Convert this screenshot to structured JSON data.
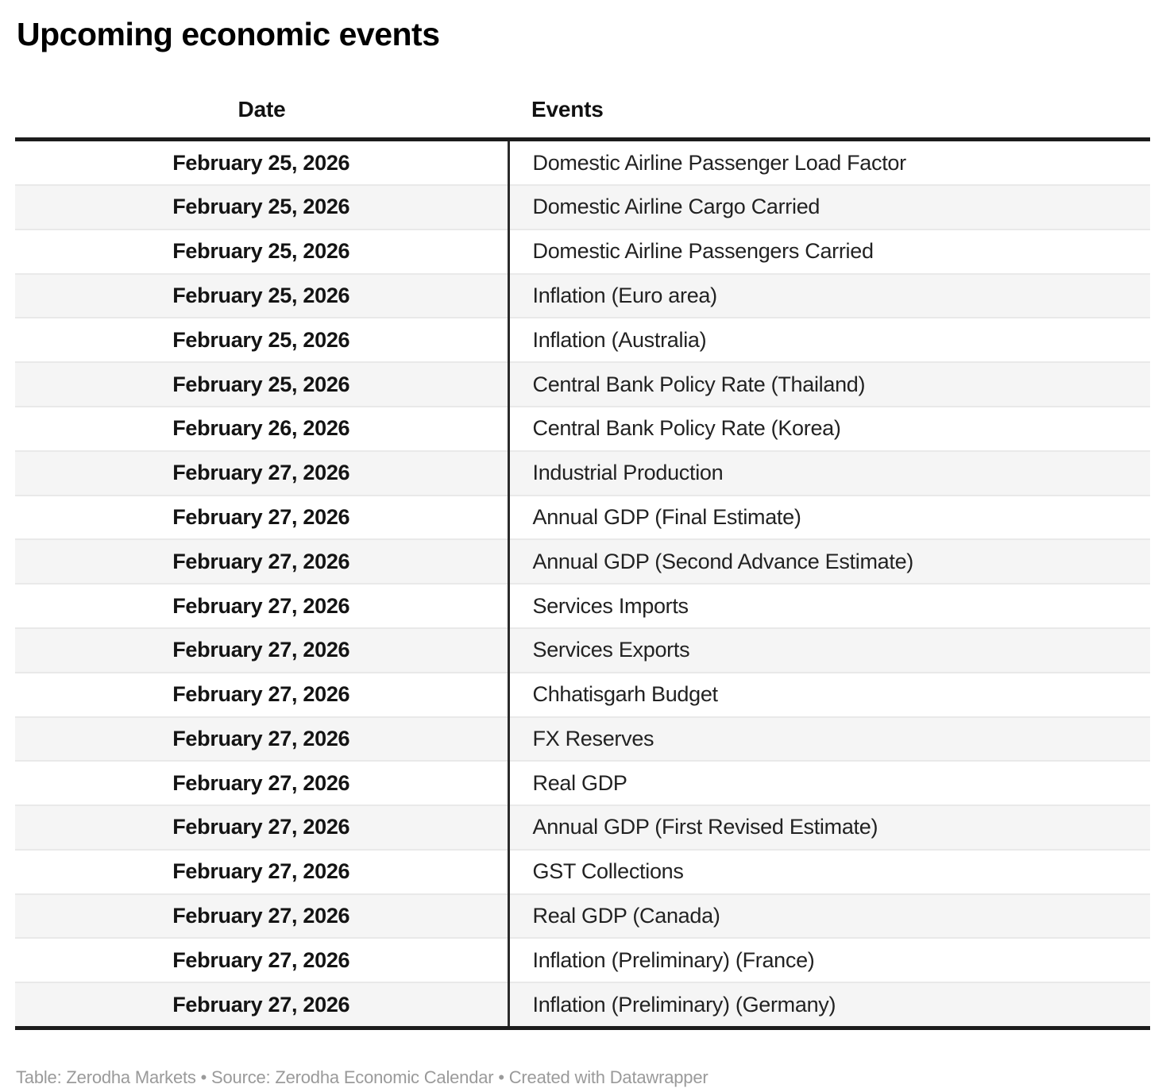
{
  "chart_data": {
    "type": "table",
    "title": "Upcoming economic events",
    "columns": [
      "Date",
      "Events"
    ],
    "rows": [
      [
        "February 25, 2026",
        "Domestic Airline Passenger Load Factor"
      ],
      [
        "February 25, 2026",
        "Domestic Airline Cargo Carried"
      ],
      [
        "February 25, 2026",
        "Domestic Airline Passengers Carried"
      ],
      [
        "February 25, 2026",
        "Inflation (Euro area)"
      ],
      [
        "February 25, 2026",
        "Inflation (Australia)"
      ],
      [
        "February 25, 2026",
        "Central Bank Policy Rate (Thailand)"
      ],
      [
        "February 26, 2026",
        "Central Bank Policy Rate (Korea)"
      ],
      [
        "February 27, 2026",
        "Industrial Production"
      ],
      [
        "February 27, 2026",
        "Annual GDP (Final Estimate)"
      ],
      [
        "February 27, 2026",
        "Annual GDP (Second Advance Estimate)"
      ],
      [
        "February 27, 2026",
        "Services Imports"
      ],
      [
        "February 27, 2026",
        "Services Exports"
      ],
      [
        "February 27, 2026",
        "Chhatisgarh Budget"
      ],
      [
        "February 27, 2026",
        "FX Reserves"
      ],
      [
        "February 27, 2026",
        "Real GDP"
      ],
      [
        "February 27, 2026",
        "Annual GDP (First Revised Estimate)"
      ],
      [
        "February 27, 2026",
        "GST Collections"
      ],
      [
        "February 27, 2026",
        "Real GDP (Canada)"
      ],
      [
        "February 27, 2026",
        "Inflation (Preliminary) (France)"
      ],
      [
        "February 27, 2026",
        "Inflation (Preliminary) (Germany)"
      ]
    ],
    "footer": "Table: Zerodha Markets • Source: Zerodha Economic Calendar • Created with Datawrapper",
    "layout": {
      "zebra_striping": true,
      "header_rule": "thick-dark",
      "column_divider": "vertical-dark",
      "date_column_align": "center",
      "events_column_align": "left"
    }
  },
  "colors": {
    "background": "#ffffff",
    "title_text": "#000000",
    "body_text": "#222222",
    "date_text": "#141414",
    "stripe": "#f5f5f5",
    "row_separator": "#e9e9e9",
    "dark_rule": "#1c1c1c",
    "column_divider": "#2b2b2b",
    "footer_text": "#9a9a9a"
  }
}
